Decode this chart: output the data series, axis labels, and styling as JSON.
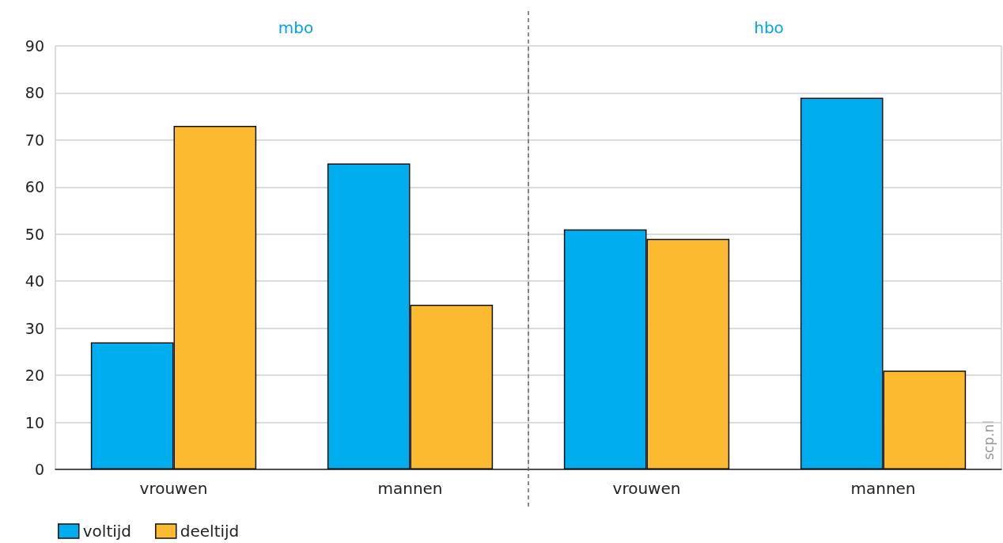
{
  "chart_data": [
    {
      "type": "bar",
      "title": "mbo",
      "categories": [
        "vrouwen",
        "mannen"
      ],
      "series": [
        {
          "name": "voltijd",
          "color": "#00aeef",
          "values": [
            27,
            65
          ]
        },
        {
          "name": "deeltijd",
          "color": "#fbba30",
          "values": [
            73,
            35
          ]
        }
      ],
      "ylim": [
        0,
        90
      ],
      "yticks": [
        0,
        10,
        20,
        30,
        40,
        50,
        60,
        70,
        80,
        90
      ],
      "grid": true,
      "legend": "bottom left"
    },
    {
      "type": "bar",
      "title": "hbo",
      "categories": [
        "vrouwen",
        "mannen"
      ],
      "series": [
        {
          "color": "#00aeef",
          "values": [
            51,
            79
          ]
        },
        {
          "color": "#fbba30",
          "values": [
            49,
            21
          ]
        }
      ],
      "ylim": [
        0,
        90
      ],
      "yticks": [
        0,
        10,
        20,
        30,
        40,
        50,
        60,
        70,
        80,
        90
      ],
      "grid": true,
      "tick_labels": "x",
      "annotations": [
        "scp.nl"
      ]
    }
  ]
}
